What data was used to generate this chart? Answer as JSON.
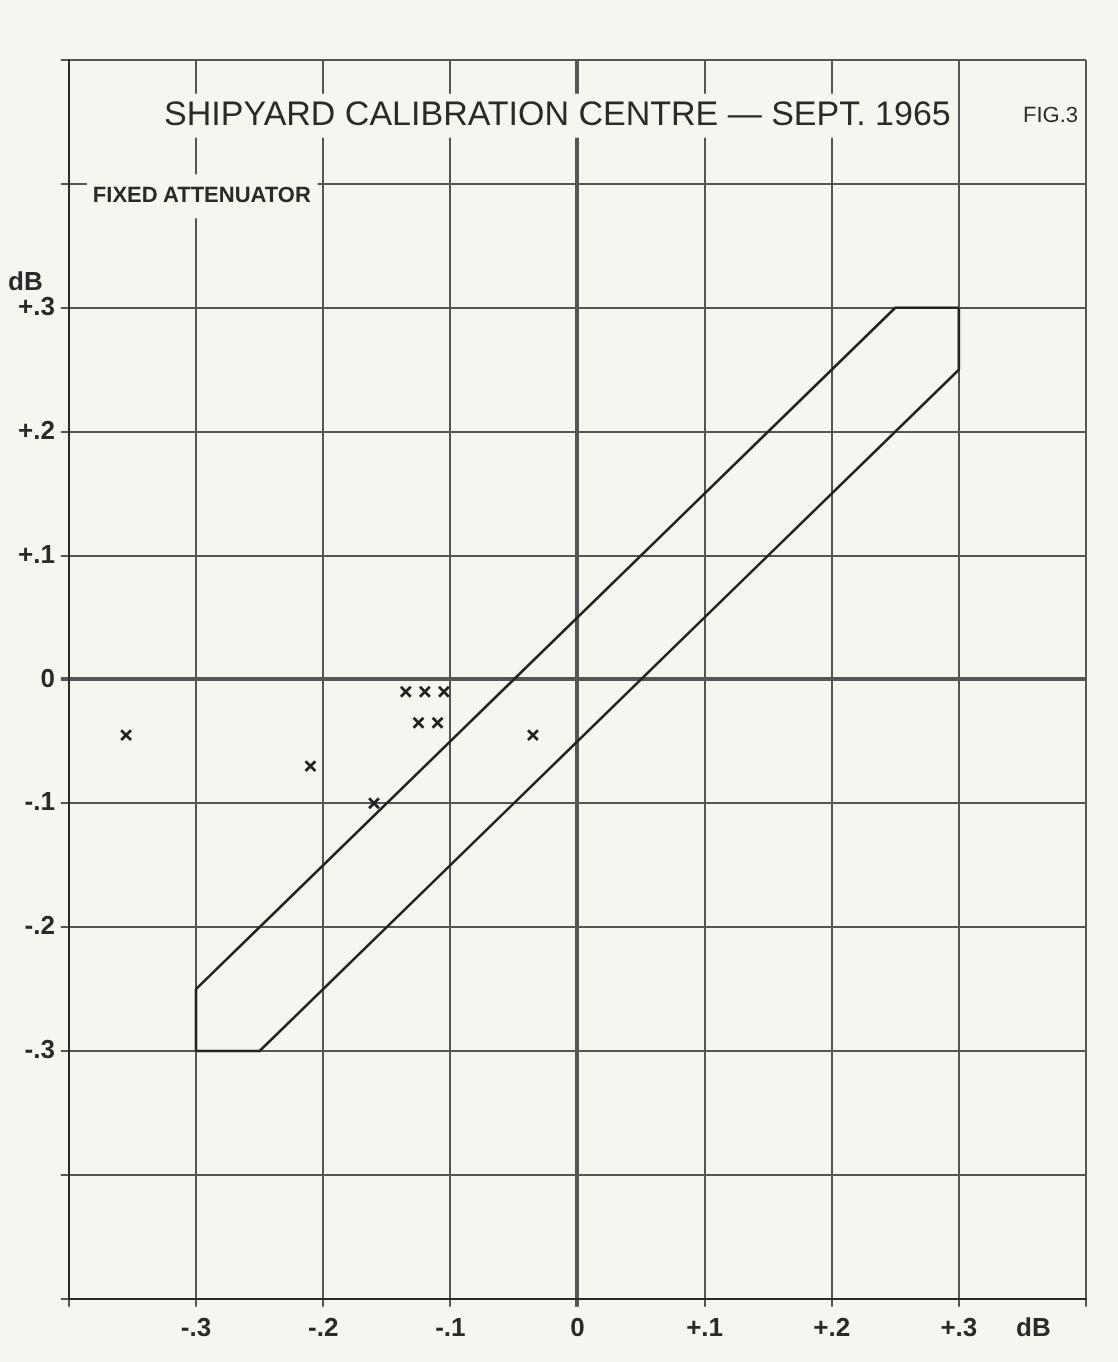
{
  "chart_data": {
    "type": "scatter",
    "title": "SHIPYARD CALIBRATION CENTRE — SEPT. 1965",
    "subtitle": "FIXED ATTENUATOR",
    "annotations": [
      "FIG.3"
    ],
    "xlabel": "dB",
    "ylabel": "dB",
    "xlim": [
      -0.4,
      0.4
    ],
    "ylim": [
      -0.5,
      0.5
    ],
    "xticks": [
      {
        "value": -0.4,
        "label": null
      },
      {
        "value": -0.3,
        "label": "-.3"
      },
      {
        "value": -0.2,
        "label": "-.2"
      },
      {
        "value": -0.1,
        "label": "-.1"
      },
      0,
      {
        "value": 0.1,
        "label": "+.1"
      },
      {
        "value": 0.2,
        "label": "+.2"
      },
      {
        "value": 0.3,
        "label": "+.3"
      },
      {
        "value": 0.4,
        "label": null
      }
    ],
    "yticks": [
      {
        "value": -0.5,
        "label": null
      },
      {
        "value": -0.4,
        "label": null
      },
      {
        "value": -0.3,
        "label": "-.3"
      },
      {
        "value": -0.2,
        "label": "-.2"
      },
      {
        "value": -0.1,
        "label": "-.1"
      },
      0,
      {
        "value": 0.1,
        "label": "+.1"
      },
      {
        "value": 0.2,
        "label": "+.2"
      },
      {
        "value": 0.3,
        "label": "+.3"
      },
      {
        "value": 0.4,
        "label": null
      },
      {
        "value": 0.5,
        "label": null
      }
    ],
    "grid": true,
    "series": [
      {
        "type": "line",
        "marker": "none",
        "color": "#222222",
        "x": [
          -0.3,
          -0.3,
          0.25,
          0.3
        ],
        "values": [
          -0.3,
          -0.25,
          0.3,
          0.3
        ]
      },
      {
        "type": "line",
        "marker": "none",
        "color": "#222222",
        "x": [
          -0.3,
          -0.25,
          0.3,
          0.3
        ],
        "values": [
          -0.3,
          -0.3,
          0.25,
          0.3
        ]
      },
      {
        "type": "scatter",
        "marker": "cross",
        "color": "#222222",
        "x": [
          -0.355,
          -0.21,
          -0.16,
          -0.135,
          -0.12,
          -0.105,
          -0.125,
          -0.11,
          -0.035
        ],
        "values": [
          -0.045,
          -0.07,
          -0.1,
          -0.01,
          -0.01,
          -0.01,
          -0.035,
          -0.035,
          -0.045
        ]
      }
    ]
  }
}
